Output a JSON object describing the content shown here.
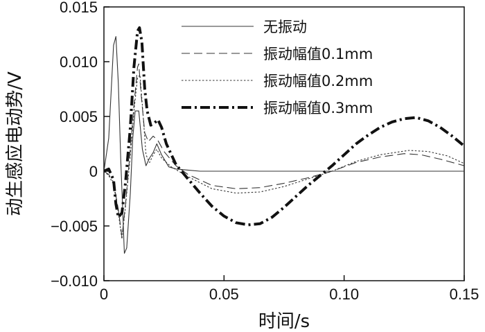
{
  "chart_data": {
    "type": "line",
    "title": "",
    "xlabel": "时间/s",
    "ylabel": "动生感应电动势/V",
    "xlim": [
      0,
      0.15
    ],
    "ylim": [
      -0.01,
      0.015
    ],
    "grid": false,
    "legend_position": "top-right",
    "x_ticks": [
      {
        "value": 0,
        "label": "0"
      },
      {
        "value": 0.05,
        "label": "0.05"
      },
      {
        "value": 0.1,
        "label": "0.10"
      },
      {
        "value": 0.15,
        "label": "0.15"
      }
    ],
    "y_ticks": [
      {
        "value": 0.015,
        "label": "0.015"
      },
      {
        "value": 0.01,
        "label": "0.010"
      },
      {
        "value": 0.005,
        "label": "0.005"
      },
      {
        "value": 0,
        "label": "0"
      },
      {
        "value": -0.005,
        "label": "−0.005"
      },
      {
        "value": -0.01,
        "label": "−0.010"
      }
    ],
    "series": [
      {
        "name": "无振动",
        "style": "solid",
        "points": [
          [
            0,
            0
          ],
          [
            0.002,
            0.003
          ],
          [
            0.004,
            0.0115
          ],
          [
            0.005,
            0.0123
          ],
          [
            0.006,
            0.008
          ],
          [
            0.007,
            0.001
          ],
          [
            0.0085,
            -0.0075
          ],
          [
            0.0095,
            -0.007
          ],
          [
            0.011,
            -0.002
          ],
          [
            0.012,
            0.003
          ],
          [
            0.013,
            0.0055
          ],
          [
            0.0145,
            0.0055
          ],
          [
            0.016,
            0.002
          ],
          [
            0.0175,
            0.0005
          ],
          [
            0.019,
            0.0012
          ],
          [
            0.0205,
            0.0017
          ],
          [
            0.022,
            0.0025
          ],
          [
            0.024,
            0.0015
          ],
          [
            0.027,
            0.0004
          ],
          [
            0.03,
            0.0002
          ],
          [
            0.035,
            0.0001
          ],
          [
            0.04,
            0
          ],
          [
            0.06,
            0
          ],
          [
            0.09,
            0
          ],
          [
            0.12,
            0
          ],
          [
            0.15,
            0
          ]
        ]
      },
      {
        "name": "振动幅值0.1mm",
        "style": "dashed",
        "points": [
          [
            0,
            0
          ],
          [
            0.002,
            -0.0003
          ],
          [
            0.004,
            -0.001
          ],
          [
            0.006,
            -0.0035
          ],
          [
            0.0075,
            -0.006
          ],
          [
            0.009,
            -0.003
          ],
          [
            0.011,
            0.002
          ],
          [
            0.0125,
            0.006
          ],
          [
            0.014,
            0.0095
          ],
          [
            0.0145,
            0.0098
          ],
          [
            0.0155,
            0.007
          ],
          [
            0.017,
            0.0035
          ],
          [
            0.0185,
            0.0027
          ],
          [
            0.0205,
            0.0032
          ],
          [
            0.0225,
            0.0028
          ],
          [
            0.025,
            0.0018
          ],
          [
            0.03,
            0.0005
          ],
          [
            0.035,
            -0.0003
          ],
          [
            0.045,
            -0.0013
          ],
          [
            0.055,
            -0.0016
          ],
          [
            0.065,
            -0.0015
          ],
          [
            0.075,
            -0.0011
          ],
          [
            0.085,
            -0.0006
          ],
          [
            0.095,
            0
          ],
          [
            0.105,
            0.0008
          ],
          [
            0.115,
            0.0013
          ],
          [
            0.125,
            0.0016
          ],
          [
            0.132,
            0.0015
          ],
          [
            0.14,
            0.0011
          ],
          [
            0.15,
            0.0005
          ]
        ]
      },
      {
        "name": "振动幅值0.2mm",
        "style": "dotted",
        "points": [
          [
            0,
            0
          ],
          [
            0.002,
            -0.0004
          ],
          [
            0.004,
            -0.0012
          ],
          [
            0.006,
            -0.0038
          ],
          [
            0.0075,
            -0.0062
          ],
          [
            0.009,
            -0.0032
          ],
          [
            0.011,
            0.0015
          ],
          [
            0.0125,
            0.0055
          ],
          [
            0.014,
            0.0085
          ],
          [
            0.015,
            0.0088
          ],
          [
            0.016,
            0.006
          ],
          [
            0.0175,
            0.0015
          ],
          [
            0.019,
            0.0008
          ],
          [
            0.0205,
            0.0015
          ],
          [
            0.022,
            0.002
          ],
          [
            0.024,
            0.0012
          ],
          [
            0.028,
            0.0004
          ],
          [
            0.035,
            -0.0005
          ],
          [
            0.045,
            -0.0016
          ],
          [
            0.055,
            -0.002
          ],
          [
            0.065,
            -0.0019
          ],
          [
            0.075,
            -0.0014
          ],
          [
            0.085,
            -0.0007
          ],
          [
            0.095,
            0
          ],
          [
            0.105,
            0.0009
          ],
          [
            0.115,
            0.0015
          ],
          [
            0.127,
            0.0019
          ],
          [
            0.135,
            0.0018
          ],
          [
            0.143,
            0.0014
          ],
          [
            0.15,
            0.0007
          ]
        ]
      },
      {
        "name": "振动幅值0.3mm",
        "style": "dash-dot",
        "points": [
          [
            0,
            0
          ],
          [
            0.002,
            0.0002
          ],
          [
            0.004,
            -0.0008
          ],
          [
            0.005,
            -0.003
          ],
          [
            0.006,
            -0.0042
          ],
          [
            0.0075,
            -0.0038
          ],
          [
            0.009,
            -0.001
          ],
          [
            0.011,
            0.004
          ],
          [
            0.0125,
            0.0095
          ],
          [
            0.014,
            0.0128
          ],
          [
            0.0148,
            0.0131
          ],
          [
            0.0158,
            0.0118
          ],
          [
            0.017,
            0.0075
          ],
          [
            0.018,
            0.0055
          ],
          [
            0.0195,
            0.0042
          ],
          [
            0.021,
            0.0044
          ],
          [
            0.0225,
            0.0047
          ],
          [
            0.024,
            0.004
          ],
          [
            0.026,
            0.0025
          ],
          [
            0.03,
            0.0006
          ],
          [
            0.035,
            -0.0007
          ],
          [
            0.04,
            -0.002
          ],
          [
            0.045,
            -0.0032
          ],
          [
            0.05,
            -0.0041
          ],
          [
            0.055,
            -0.0047
          ],
          [
            0.06,
            -0.0049
          ],
          [
            0.065,
            -0.0048
          ],
          [
            0.07,
            -0.0042
          ],
          [
            0.075,
            -0.0033
          ],
          [
            0.08,
            -0.0023
          ],
          [
            0.085,
            -0.0013
          ],
          [
            0.09,
            -0.0004
          ],
          [
            0.095,
            0.0005
          ],
          [
            0.1,
            0.0015
          ],
          [
            0.105,
            0.0025
          ],
          [
            0.11,
            0.0033
          ],
          [
            0.115,
            0.004
          ],
          [
            0.12,
            0.0045
          ],
          [
            0.125,
            0.0048
          ],
          [
            0.13,
            0.0049
          ],
          [
            0.135,
            0.0046
          ],
          [
            0.14,
            0.004
          ],
          [
            0.145,
            0.0032
          ],
          [
            0.15,
            0.0023
          ]
        ]
      }
    ]
  }
}
